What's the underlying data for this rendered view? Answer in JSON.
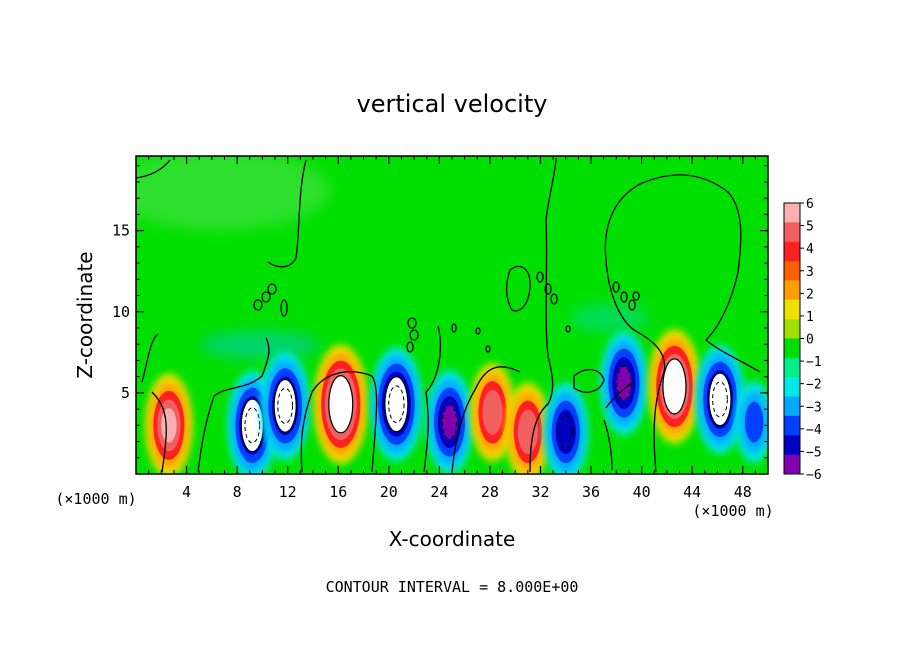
{
  "chart_data": {
    "type": "heatmap",
    "title": "vertical velocity",
    "xlabel": "X-coordinate",
    "ylabel": "Z-coordinate",
    "x_unit_left": "(×1000 m)",
    "x_unit_right": "(×1000 m)",
    "footer": "CONTOUR INTERVAL = 8.000E+00",
    "xlim": [
      0,
      50
    ],
    "ylim": [
      0,
      19.6
    ],
    "x_ticks": [
      4,
      8,
      12,
      16,
      20,
      24,
      28,
      32,
      36,
      40,
      44,
      48
    ],
    "y_ticks": [
      5,
      10,
      15
    ],
    "colorbar": {
      "ticks": [
        "6",
        "5",
        "4",
        "3",
        "2",
        "1",
        "0",
        "−1",
        "−2",
        "−3",
        "−4",
        "−5",
        "−6"
      ],
      "tick_values": [
        6,
        5,
        4,
        3,
        2,
        1,
        0,
        -1,
        -2,
        -3,
        -4,
        -5,
        -6
      ],
      "colors": [
        "#f8b0b0",
        "#f06060",
        "#ff2020",
        "#ff6000",
        "#ffa000",
        "#f0e000",
        "#a0e000",
        "#00dd00",
        "#00ee88",
        "#00e8e8",
        "#00a8ff",
        "#0040ff",
        "#0000c0",
        "#8000b0"
      ]
    },
    "features": [
      {
        "x": 2.6,
        "z": 3.0,
        "w": 6.0
      },
      {
        "x": 9.2,
        "z": 3.0,
        "w": -6.5
      },
      {
        "x": 11.8,
        "z": 4.2,
        "w": -6.5
      },
      {
        "x": 16.2,
        "z": 4.3,
        "w": 7.5
      },
      {
        "x": 20.6,
        "z": 4.3,
        "w": -7.0
      },
      {
        "x": 24.8,
        "z": 3.2,
        "w": -6.0
      },
      {
        "x": 28.2,
        "z": 3.8,
        "w": 5.5
      },
      {
        "x": 31.0,
        "z": 2.6,
        "w": 5.5
      },
      {
        "x": 34.0,
        "z": 2.6,
        "w": -5.5
      },
      {
        "x": 38.6,
        "z": 5.6,
        "w": -6.0
      },
      {
        "x": 42.6,
        "z": 5.4,
        "w": 7.0
      },
      {
        "x": 46.2,
        "z": 4.6,
        "w": -6.5
      },
      {
        "x": 48.9,
        "z": 3.2,
        "w": -4.0
      }
    ]
  }
}
